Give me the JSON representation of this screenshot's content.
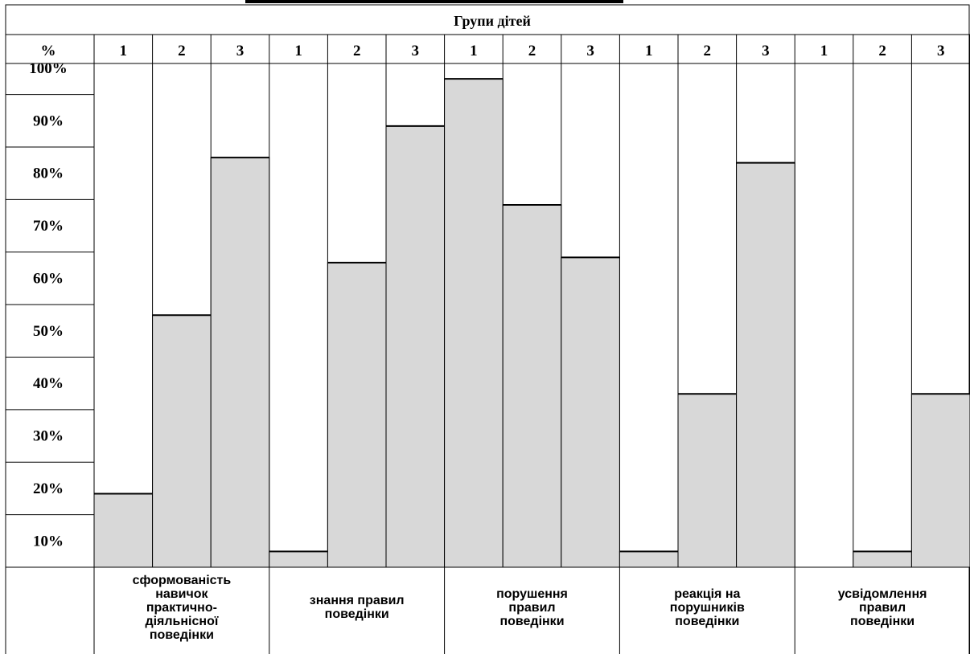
{
  "chart_data": {
    "type": "bar",
    "title": "Групи дітей",
    "ylabel": "%",
    "y_tick_labels": [
      "100%",
      "90%",
      "80%",
      "70%",
      "60%",
      "50%",
      "40%",
      "30%",
      "20%",
      "10%"
    ],
    "group_labels": [
      "1",
      "2",
      "3"
    ],
    "categories": [
      "сформованість навичок практично-діяльнісної поведінки",
      "знання правил поведінки",
      "порушення правил поведінки",
      "реакція на порушників поведінки",
      "усвідомлення правил поведінки"
    ],
    "category_lines": [
      [
        "сформованість",
        "навичок",
        "практично-",
        "діяльнісної",
        "поведінки"
      ],
      [
        "знання правил",
        "поведінки"
      ],
      [
        "порушення",
        "правил",
        "поведінки"
      ],
      [
        "реакція на",
        "порушників",
        "поведінки"
      ],
      [
        "усвідомлення",
        "правил",
        "поведінки"
      ]
    ],
    "series": [
      {
        "values": [
          19,
          8,
          98,
          8,
          0
        ]
      },
      {
        "values": [
          53,
          63,
          74,
          38,
          8
        ]
      },
      {
        "values": [
          83,
          89,
          64,
          82,
          38
        ]
      }
    ],
    "ylim": [
      5,
      100
    ],
    "fill_color": "#d8d8d8"
  }
}
